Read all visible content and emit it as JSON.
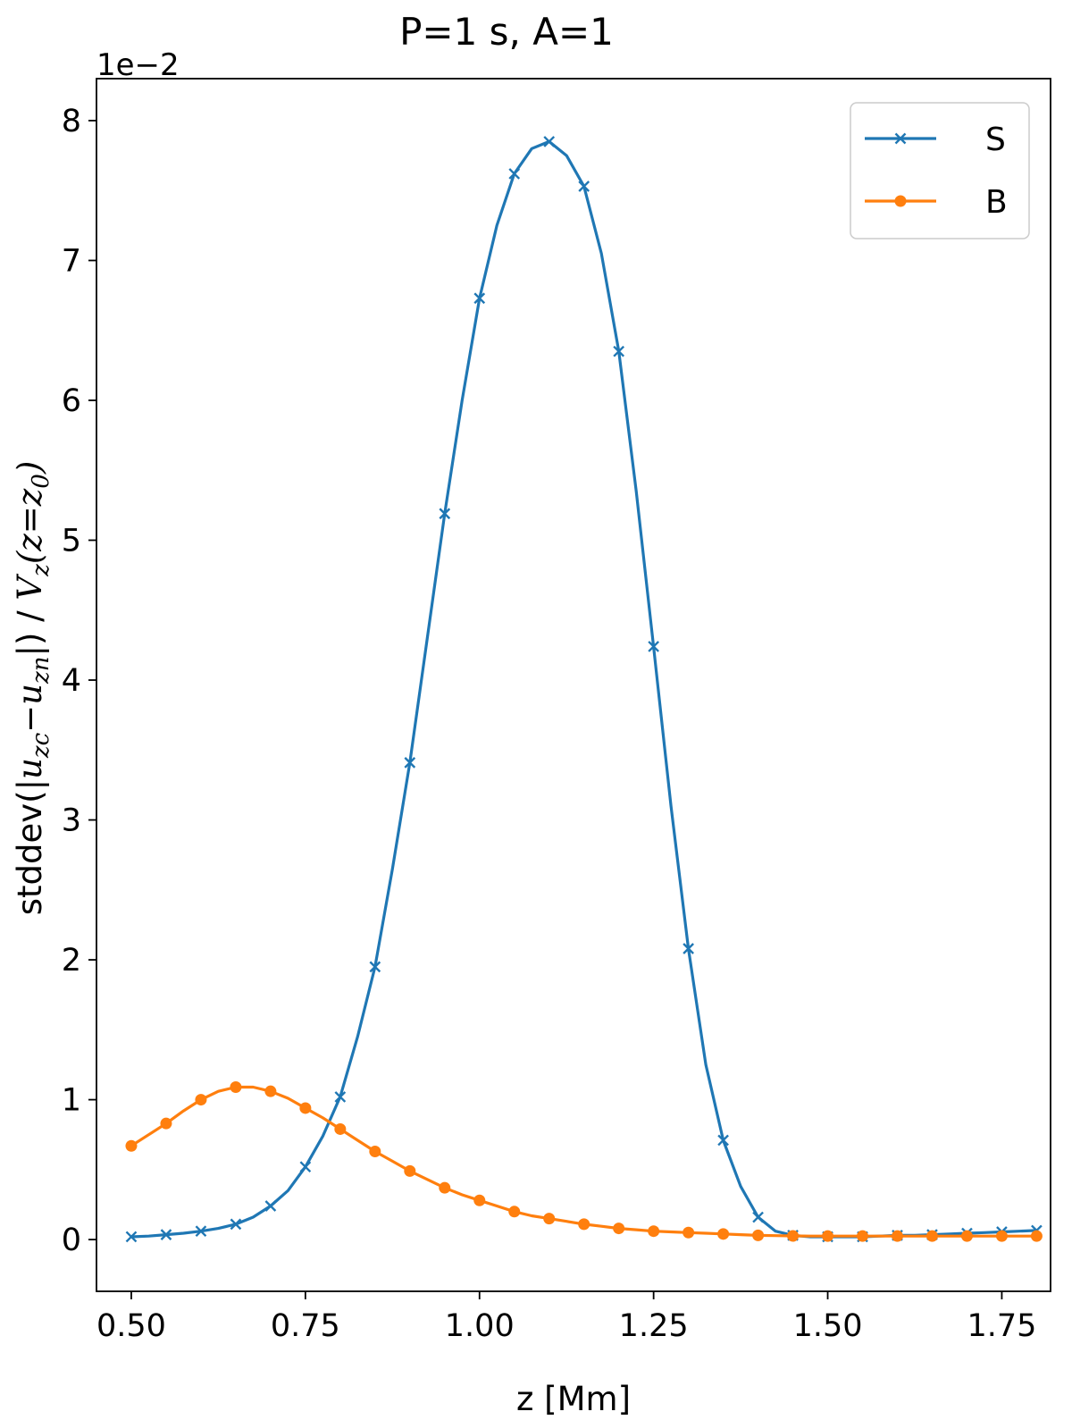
{
  "chart_data": {
    "type": "line",
    "title": "P=1 s, A=1",
    "xlabel": "z [Mm]",
    "ylabel": {
      "prefix": "stddev(",
      "bar_open": "|",
      "u1": "u",
      "sub1": "zc",
      "minus": "−",
      "u2": "u",
      "sub2": "zn",
      "bar_close": "|",
      "close": ")",
      "slash": " / ",
      "v": "V",
      "vsub": "z",
      "arg_open": "(",
      "z": "z",
      "eq": "=",
      "z0": "z",
      "z0sub": "0",
      "arg_close": ")"
    },
    "offset_text": "1e−2",
    "xlim": [
      0.45,
      1.82
    ],
    "ylim": [
      -0.37,
      8.3
    ],
    "xticks": [
      0.5,
      0.75,
      1.0,
      1.25,
      1.5,
      1.75
    ],
    "xtick_labels": [
      "0.50",
      "0.75",
      "1.00",
      "1.25",
      "1.50",
      "1.75"
    ],
    "yticks": [
      0,
      1,
      2,
      3,
      4,
      5,
      6,
      7,
      8
    ],
    "ytick_labels": [
      "0",
      "1",
      "2",
      "3",
      "4",
      "5",
      "6",
      "7",
      "8"
    ],
    "legend_position": "top-right",
    "series": [
      {
        "name": "S",
        "color": "#1f77b4",
        "marker": "x",
        "x": [
          0.5,
          0.525,
          0.55,
          0.575,
          0.6,
          0.625,
          0.65,
          0.675,
          0.7,
          0.725,
          0.75,
          0.775,
          0.8,
          0.825,
          0.85,
          0.875,
          0.9,
          0.925,
          0.95,
          0.975,
          1.0,
          1.025,
          1.05,
          1.075,
          1.1,
          1.125,
          1.15,
          1.175,
          1.2,
          1.225,
          1.25,
          1.275,
          1.3,
          1.325,
          1.35,
          1.375,
          1.4,
          1.425,
          1.45,
          1.475,
          1.5,
          1.525,
          1.55,
          1.575,
          1.6,
          1.625,
          1.65,
          1.675,
          1.7,
          1.725,
          1.75,
          1.775,
          1.8
        ],
        "values": [
          0.02,
          0.025,
          0.035,
          0.045,
          0.06,
          0.08,
          0.11,
          0.16,
          0.24,
          0.35,
          0.52,
          0.74,
          1.02,
          1.45,
          1.95,
          2.65,
          3.41,
          4.3,
          5.19,
          6.0,
          6.73,
          7.25,
          7.62,
          7.8,
          7.85,
          7.75,
          7.53,
          7.05,
          6.35,
          5.35,
          4.24,
          3.1,
          2.08,
          1.25,
          0.71,
          0.38,
          0.16,
          0.06,
          0.03,
          0.02,
          0.02,
          0.02,
          0.02,
          0.025,
          0.03,
          0.03,
          0.035,
          0.04,
          0.045,
          0.05,
          0.055,
          0.06,
          0.065
        ],
        "marker_x": [
          0.5,
          0.55,
          0.6,
          0.65,
          0.7,
          0.75,
          0.8,
          0.85,
          0.9,
          0.95,
          1.0,
          1.05,
          1.1,
          1.15,
          1.2,
          1.25,
          1.3,
          1.35,
          1.4,
          1.45,
          1.5,
          1.55,
          1.6,
          1.65,
          1.7,
          1.75,
          1.8
        ],
        "marker_values": [
          0.02,
          0.035,
          0.06,
          0.11,
          0.24,
          0.52,
          1.02,
          1.95,
          3.41,
          5.19,
          6.73,
          7.62,
          7.85,
          7.53,
          6.35,
          4.24,
          2.08,
          0.71,
          0.16,
          0.03,
          0.02,
          0.02,
          0.03,
          0.035,
          0.045,
          0.055,
          0.065
        ]
      },
      {
        "name": "B",
        "color": "#ff7f0e",
        "marker": "o",
        "x": [
          0.5,
          0.525,
          0.55,
          0.575,
          0.6,
          0.625,
          0.65,
          0.675,
          0.7,
          0.725,
          0.75,
          0.775,
          0.8,
          0.825,
          0.85,
          0.875,
          0.9,
          0.925,
          0.95,
          0.975,
          1.0,
          1.025,
          1.05,
          1.075,
          1.1,
          1.125,
          1.15,
          1.175,
          1.2,
          1.225,
          1.25,
          1.275,
          1.3,
          1.325,
          1.35,
          1.375,
          1.4,
          1.425,
          1.45,
          1.475,
          1.5,
          1.525,
          1.55,
          1.575,
          1.6,
          1.625,
          1.65,
          1.675,
          1.7,
          1.725,
          1.75,
          1.775,
          1.8
        ],
        "values": [
          0.67,
          0.75,
          0.83,
          0.92,
          1.0,
          1.06,
          1.09,
          1.09,
          1.06,
          1.01,
          0.94,
          0.87,
          0.79,
          0.71,
          0.63,
          0.56,
          0.49,
          0.43,
          0.37,
          0.32,
          0.28,
          0.24,
          0.2,
          0.17,
          0.15,
          0.13,
          0.11,
          0.095,
          0.08,
          0.07,
          0.06,
          0.055,
          0.05,
          0.045,
          0.04,
          0.035,
          0.03,
          0.028,
          0.026,
          0.025,
          0.025,
          0.025,
          0.025,
          0.025,
          0.025,
          0.025,
          0.025,
          0.025,
          0.025,
          0.025,
          0.025,
          0.025,
          0.025
        ],
        "marker_x": [
          0.5,
          0.55,
          0.6,
          0.65,
          0.7,
          0.75,
          0.8,
          0.85,
          0.9,
          0.95,
          1.0,
          1.05,
          1.1,
          1.15,
          1.2,
          1.25,
          1.3,
          1.35,
          1.4,
          1.45,
          1.5,
          1.55,
          1.6,
          1.65,
          1.7,
          1.75,
          1.8
        ],
        "marker_values": [
          0.67,
          0.83,
          1.0,
          1.09,
          1.06,
          0.94,
          0.79,
          0.63,
          0.49,
          0.37,
          0.28,
          0.2,
          0.15,
          0.11,
          0.08,
          0.06,
          0.05,
          0.04,
          0.03,
          0.026,
          0.025,
          0.025,
          0.025,
          0.025,
          0.025,
          0.025,
          0.025
        ]
      }
    ]
  }
}
